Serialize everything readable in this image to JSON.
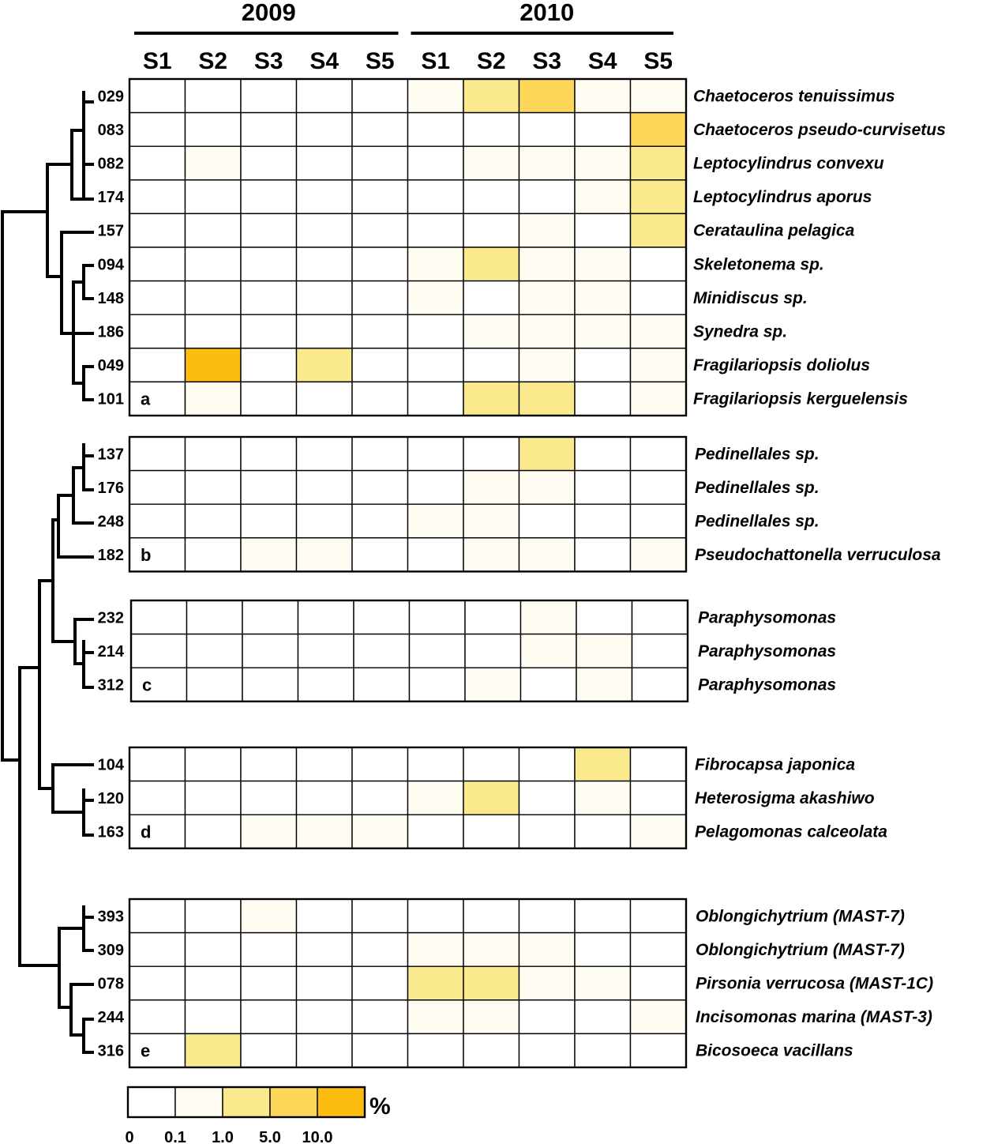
{
  "chart_data": {
    "type": "heatmap",
    "title": "",
    "unit": "%",
    "years": [
      {
        "label": "2009",
        "samples": [
          "S1",
          "S2",
          "S3",
          "S4",
          "S5"
        ]
      },
      {
        "label": "2010",
        "samples": [
          "S1",
          "S2",
          "S3",
          "S4",
          "S5"
        ]
      }
    ],
    "color_scale": {
      "ticks": [
        "0",
        "0.1",
        "1.0",
        "5.0",
        "10.0"
      ],
      "colors": [
        "#ffffff",
        "#fffcf2",
        "#fbe98e",
        "#fdd75a",
        "#fdbd10"
      ],
      "unit_label": "%"
    },
    "groups": [
      {
        "label": "a",
        "rows": [
          {
            "otu": "029",
            "taxon": "Chaetoceros  tenuissimus",
            "values": [
              0,
              0,
              0,
              0,
              0,
              0.1,
              2.5,
              6.0,
              0.2,
              0.2
            ]
          },
          {
            "otu": "083",
            "taxon": "Chaetoceros pseudo-curvisetus",
            "values": [
              0,
              0,
              0,
              0,
              0,
              0,
              0,
              0,
              0,
              5.0
            ]
          },
          {
            "otu": "082",
            "taxon": "Leptocylindrus  convexu",
            "values": [
              0,
              0.1,
              0,
              0,
              0,
              0,
              0.1,
              0.2,
              0.5,
              3.0
            ]
          },
          {
            "otu": "174",
            "taxon": "Leptocylindrus  aporus",
            "values": [
              0,
              0,
              0,
              0,
              0,
              0,
              0,
              0,
              0.2,
              2.0
            ]
          },
          {
            "otu": "157",
            "taxon": "Cerataulina  pelagica",
            "values": [
              0,
              0,
              0,
              0,
              0,
              0,
              0,
              0.2,
              0,
              2.0
            ]
          },
          {
            "otu": "094",
            "taxon": "Skeletonema  sp.",
            "values": [
              0,
              0,
              0,
              0,
              0,
              0.1,
              3.0,
              0.1,
              0.1,
              0
            ]
          },
          {
            "otu": "148",
            "taxon": "Minidiscus  sp.",
            "values": [
              0,
              0,
              0,
              0,
              0,
              0.1,
              0,
              0.6,
              0.1,
              0
            ]
          },
          {
            "otu": "186",
            "taxon": "Synedra  sp.",
            "values": [
              0,
              0,
              0,
              0,
              0,
              0,
              0.2,
              0.6,
              0.1,
              0.1
            ]
          },
          {
            "otu": "049",
            "taxon": "Fragilariopsis  doliolus",
            "values": [
              0,
              10.0,
              0,
              1.5,
              0,
              0,
              0,
              0.1,
              0,
              0.5
            ]
          },
          {
            "otu": "101",
            "taxon": "Fragilariopsis  kerguelensis",
            "values": [
              0,
              0.4,
              0,
              0,
              0,
              0,
              2.5,
              1.2,
              0,
              0.1
            ]
          }
        ]
      },
      {
        "label": "b",
        "rows": [
          {
            "otu": "137",
            "taxon": "Pedinellales  sp.",
            "values": [
              0,
              0,
              0,
              0,
              0,
              0,
              0,
              1.2,
              0,
              0
            ]
          },
          {
            "otu": "176",
            "taxon": "Pedinellales  sp.",
            "values": [
              0,
              0,
              0,
              0,
              0,
              0,
              0.4,
              0.4,
              0,
              0
            ]
          },
          {
            "otu": "248",
            "taxon": "Pedinellales  sp.",
            "values": [
              0,
              0,
              0,
              0,
              0,
              0.1,
              0.5,
              0,
              0,
              0
            ]
          },
          {
            "otu": "182",
            "taxon": "Pseudochattonella  verruculosa",
            "values": [
              0,
              0,
              0.1,
              0.1,
              0,
              0,
              0.2,
              0.2,
              0,
              0.1
            ]
          }
        ]
      },
      {
        "label": "c",
        "rows": [
          {
            "otu": "232",
            "taxon": "Paraphysomonas",
            "values": [
              0,
              0,
              0,
              0,
              0,
              0,
              0,
              0.7,
              0,
              0
            ]
          },
          {
            "otu": "214",
            "taxon": "Paraphysomonas",
            "values": [
              0,
              0,
              0,
              0,
              0,
              0,
              0,
              0.2,
              0.1,
              0
            ]
          },
          {
            "otu": "312",
            "taxon": "Paraphysomonas",
            "values": [
              0,
              0,
              0,
              0,
              0,
              0,
              0.1,
              0,
              0.1,
              0
            ]
          }
        ]
      },
      {
        "label": "d",
        "rows": [
          {
            "otu": "104",
            "taxon": "Fibrocapsa  japonica",
            "values": [
              0,
              0,
              0,
              0,
              0,
              0,
              0,
              0,
              1.0,
              0
            ]
          },
          {
            "otu": "120",
            "taxon": "Heterosigma  akashiwo",
            "values": [
              0,
              0,
              0,
              0,
              0,
              0.1,
              1.2,
              0,
              0.1,
              0
            ]
          },
          {
            "otu": "163",
            "taxon": "Pelagomonas  calceolata",
            "values": [
              0,
              0,
              0.1,
              0.7,
              0.1,
              0,
              0,
              0,
              0,
              0.1
            ]
          }
        ]
      },
      {
        "label": "e",
        "rows": [
          {
            "otu": "393",
            "taxon": "Oblongichytrium  (MAST-7)",
            "values": [
              0,
              0,
              0.1,
              0,
              0,
              0,
              0,
              0,
              0,
              0
            ]
          },
          {
            "otu": "309",
            "taxon": "Oblongichytrium  (MAST-7)",
            "values": [
              0,
              0,
              0,
              0,
              0,
              0.1,
              0.1,
              0.1,
              0,
              0
            ]
          },
          {
            "otu": "078",
            "taxon": "Pirsonia  verrucosa  (MAST-1C)",
            "values": [
              0,
              0,
              0,
              0,
              0,
              1.5,
              1.2,
              0.7,
              0.1,
              0
            ]
          },
          {
            "otu": "244",
            "taxon": "Incisomonas  marina  (MAST-3)",
            "values": [
              0,
              0,
              0,
              0,
              0,
              0.1,
              0.1,
              0,
              0,
              0.5
            ]
          },
          {
            "otu": "316",
            "taxon": "Bicosoeca  vacillans",
            "values": [
              0,
              2.0,
              0,
              0,
              0,
              0,
              0,
              0,
              0,
              0
            ]
          }
        ]
      }
    ]
  }
}
